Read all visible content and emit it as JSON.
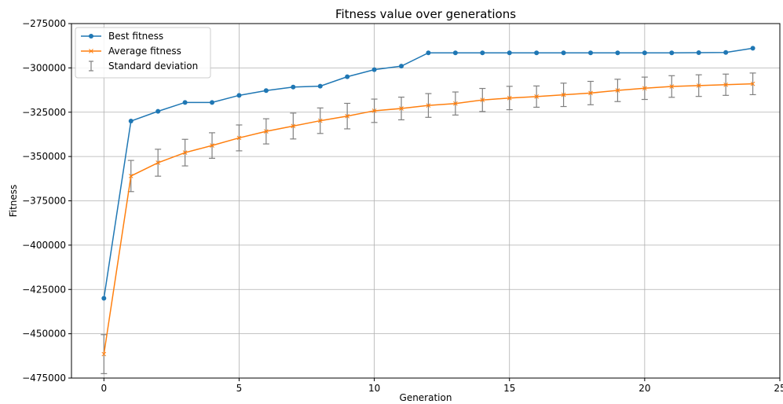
{
  "chart_data": {
    "type": "line",
    "title": "Fitness value over generations",
    "xlabel": "Generation",
    "ylabel": "Fitness",
    "xlim": [
      -1.2,
      25
    ],
    "ylim": [
      -475000,
      -275000
    ],
    "xticks": [
      0,
      5,
      10,
      15,
      20,
      25
    ],
    "xtick_labels": [
      "0",
      "5",
      "10",
      "15",
      "20",
      "25"
    ],
    "yticks": [
      -475000,
      -450000,
      -425000,
      -400000,
      -375000,
      -350000,
      -325000,
      -300000,
      -275000
    ],
    "ytick_labels": [
      "−475000",
      "−450000",
      "−425000",
      "−400000",
      "−375000",
      "−350000",
      "−325000",
      "−300000",
      "−275000"
    ],
    "grid": true,
    "legend_position": "top-left",
    "x": [
      0,
      1,
      2,
      3,
      4,
      5,
      6,
      7,
      8,
      9,
      10,
      11,
      12,
      13,
      14,
      15,
      16,
      17,
      18,
      19,
      20,
      21,
      22,
      23,
      24
    ],
    "series": [
      {
        "name": "Best fitness",
        "color": "#1f77b4",
        "marker": "circle",
        "values": [
          -430000,
          -330000,
          -324500,
          -319500,
          -319500,
          -315500,
          -312800,
          -310800,
          -310300,
          -305000,
          -301000,
          -299000,
          -291500,
          -291500,
          -291500,
          -291500,
          -291500,
          -291500,
          -291500,
          -291500,
          -291500,
          -291500,
          -291400,
          -291300,
          -288900
        ]
      },
      {
        "name": "Average fitness",
        "color": "#ff7f0e",
        "marker": "x",
        "values": [
          -461500,
          -361000,
          -353500,
          -347800,
          -343800,
          -339500,
          -335800,
          -332800,
          -329800,
          -327200,
          -324200,
          -322900,
          -321200,
          -320100,
          -318100,
          -317000,
          -316200,
          -315200,
          -314200,
          -312700,
          -311500,
          -310500,
          -310000,
          -309500,
          -309000
        ]
      }
    ],
    "error_bars": {
      "name": "Standard deviation",
      "color": "#808080",
      "applies_to": "Average fitness",
      "values": [
        11000,
        8800,
        7600,
        7500,
        7200,
        7300,
        7100,
        7300,
        7200,
        7200,
        6600,
        6400,
        6700,
        6500,
        6500,
        6600,
        6000,
        6600,
        6600,
        6300,
        6300,
        6100,
        6100,
        6000,
        6100
      ]
    }
  }
}
